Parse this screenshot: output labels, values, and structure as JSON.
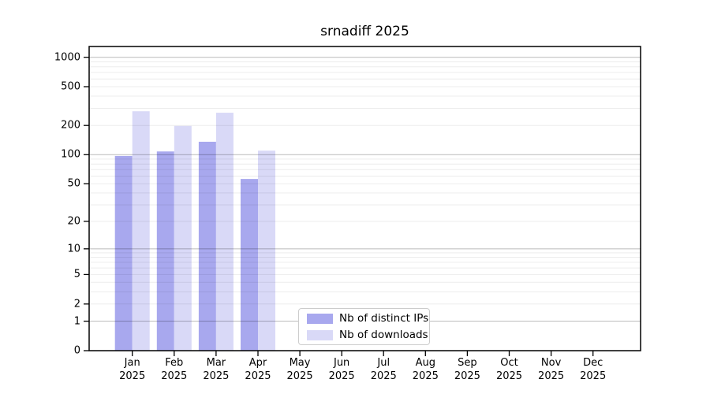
{
  "chart_data": {
    "type": "bar",
    "title": "srnadiff 2025",
    "yscale": "log1p",
    "ylim": [
      0,
      1290
    ],
    "y_ticks": [
      0,
      1,
      2,
      5,
      10,
      20,
      50,
      100,
      200,
      500,
      1000
    ],
    "months": [
      "Jan",
      "Feb",
      "Mar",
      "Apr",
      "May",
      "Jun",
      "Jul",
      "Aug",
      "Sep",
      "Oct",
      "Nov",
      "Dec"
    ],
    "year": "2025",
    "series": [
      {
        "name": "Nb of distinct IPs",
        "color": "#a8a8ee",
        "values": [
          97,
          108,
          136,
          56,
          null,
          null,
          null,
          null,
          null,
          null,
          null,
          null
        ]
      },
      {
        "name": "Nb of downloads",
        "color": "#d9d9f7",
        "values": [
          280,
          198,
          270,
          110,
          null,
          null,
          null,
          null,
          null,
          null,
          null,
          null
        ]
      }
    ],
    "grid": {
      "major_lines": [
        1,
        10,
        100,
        1000
      ],
      "minor_multipliers": [
        2,
        3,
        4,
        5,
        6,
        7,
        8,
        9
      ],
      "orientation": "horizontal",
      "drawn_over_bars": true
    },
    "legend_position": "lower center"
  },
  "colors": {
    "background": "#ffffff",
    "axes_frame": "#000000",
    "grid_major": "rgba(0,0,0,0.24)",
    "grid_minor": "rgba(0,0,0,0.075)",
    "legend_border": "#cccccc",
    "text": "#000000"
  }
}
